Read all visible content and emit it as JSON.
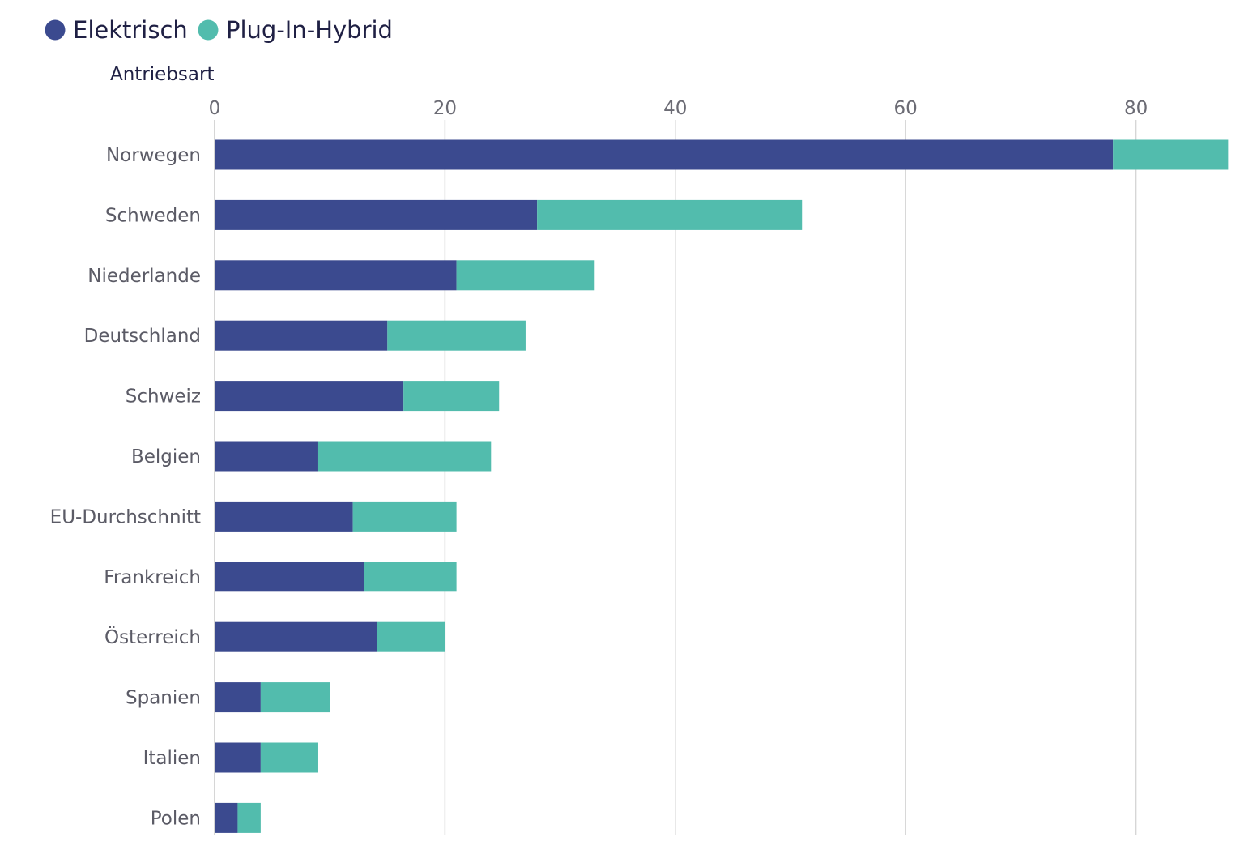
{
  "chart_data": {
    "type": "bar",
    "orientation": "horizontal",
    "stacked": true,
    "title": "",
    "subtitle": "",
    "group_label": "Antriebsart",
    "xlabel": "",
    "ylabel": "",
    "xlim": [
      0,
      88
    ],
    "x_ticks": [
      0,
      20,
      40,
      60,
      80
    ],
    "x_tick_labels": [
      "0",
      "20",
      "40",
      "60",
      "80"
    ],
    "grid": "vertical",
    "legend_position": "top-left",
    "categories": [
      "Norwegen",
      "Schweden",
      "Niederlande",
      "Deutschland",
      "Schweiz",
      "Belgien",
      "EU-Durchschnitt",
      "Frankreich",
      "Österreich",
      "Spanien",
      "Italien",
      "Polen"
    ],
    "series": [
      {
        "name": "Elektrisch",
        "color": "#3b4a8f",
        "values": [
          78,
          28,
          21,
          15,
          16.4,
          9,
          12,
          13,
          14.1,
          4,
          4,
          2
        ]
      },
      {
        "name": "Plug-In-Hybrid",
        "color": "#52bcad",
        "values": [
          10,
          23,
          12,
          12,
          8.3,
          15,
          9,
          8,
          5.9,
          6,
          5,
          2
        ]
      }
    ]
  }
}
